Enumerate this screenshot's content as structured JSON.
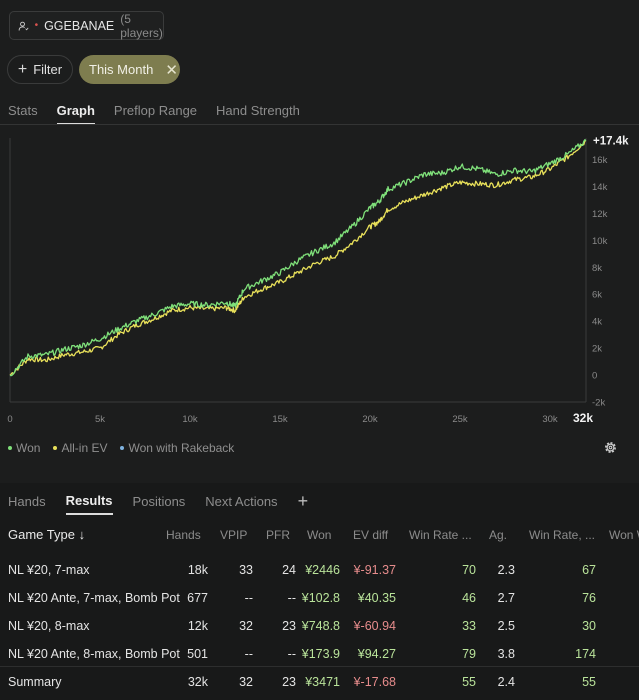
{
  "group": {
    "name": "GGEBANAE",
    "count_label": "(5 players)",
    "dot": "•"
  },
  "filters": {
    "filter_label": "Filter",
    "chip_label": "This Month",
    "chip_color": "#7e7d4f"
  },
  "top_tabs": [
    {
      "label": "Stats",
      "active": false
    },
    {
      "label": "Graph",
      "active": true
    },
    {
      "label": "Preflop Range",
      "active": false
    },
    {
      "label": "Hand Strength",
      "active": false
    }
  ],
  "chart_data": {
    "type": "line",
    "end_label": "+17.4k",
    "x_ticks": [
      "0",
      "5k",
      "10k",
      "15k",
      "20k",
      "25k",
      "30k"
    ],
    "x_max_label": "32k",
    "y_ticks": [
      "-2k",
      "0",
      "2k",
      "4k",
      "6k",
      "8k",
      "10k",
      "12k",
      "14k",
      "16k"
    ],
    "xlim": [
      0,
      32000
    ],
    "ylim": [
      -2000,
      17600
    ],
    "series": [
      {
        "name": "Won",
        "color": "#7fe07a",
        "x": [
          0,
          1000,
          2000,
          3000,
          4000,
          5000,
          6000,
          7000,
          8000,
          9000,
          10000,
          11000,
          12000,
          12500,
          13000,
          14000,
          15000,
          16000,
          17000,
          18000,
          19000,
          20000,
          20500,
          21000,
          22000,
          23000,
          24000,
          25000,
          26000,
          27000,
          28000,
          29000,
          30000,
          31000,
          32000
        ],
        "y": [
          0,
          1400,
          1500,
          1900,
          2200,
          2700,
          3400,
          4000,
          4500,
          5100,
          5300,
          5200,
          5400,
          5100,
          6400,
          7000,
          7600,
          8500,
          9200,
          9800,
          11000,
          12400,
          12900,
          13800,
          14300,
          14900,
          15000,
          15500,
          15300,
          14900,
          15200,
          15100,
          15700,
          16400,
          17400
        ]
      },
      {
        "name": "All-in EV",
        "color": "#e8e05a",
        "x": [
          0,
          1000,
          2000,
          3000,
          4000,
          5000,
          6000,
          7000,
          8000,
          9000,
          10000,
          11000,
          12000,
          12500,
          13000,
          14000,
          15000,
          16000,
          17000,
          18000,
          19000,
          20000,
          20500,
          21000,
          22000,
          23000,
          24000,
          25000,
          26000,
          27000,
          28000,
          29000,
          30000,
          31000,
          32000
        ],
        "y": [
          0,
          1200,
          1100,
          1500,
          1700,
          2000,
          3000,
          3700,
          4200,
          4800,
          5000,
          4900,
          5000,
          4800,
          5800,
          6400,
          6900,
          7600,
          8300,
          8800,
          9800,
          11000,
          11400,
          12300,
          12900,
          13400,
          13900,
          14300,
          14200,
          14100,
          14500,
          14700,
          15300,
          16200,
          17400
        ]
      },
      {
        "name": "Won with Rakeback",
        "color": "#7fb3e0",
        "x": [],
        "y": []
      }
    ]
  },
  "legend_colors": {
    "won": "#7fe07a",
    "ev": "#e8e05a",
    "rakeback": "#7fb3e0"
  },
  "sub_tabs": [
    {
      "label": "Hands",
      "active": false
    },
    {
      "label": "Results",
      "active": true
    },
    {
      "label": "Positions",
      "active": false
    },
    {
      "label": "Next Actions",
      "active": false
    }
  ],
  "table": {
    "headers": {
      "game_type": "Game Type ↓",
      "hands": "Hands",
      "vpip": "VPIP",
      "pfr": "PFR",
      "won": "Won",
      "ev_diff": "EV diff",
      "win_rate": "Win Rate ...",
      "ag": "Ag.",
      "win_rate2": "Win Rate, ...",
      "won_w": "Won W"
    },
    "rows": [
      {
        "name": "NL ¥20, 7-max",
        "hands": "18k",
        "vpip": "33",
        "pfr": "24",
        "won": "¥2446",
        "ev_diff": "¥-91.37",
        "win_rate": "70",
        "ag": "2.3",
        "win_rate2": "67"
      },
      {
        "name": "NL ¥20 Ante, 7-max, Bomb Pot",
        "hands": "677",
        "vpip": "--",
        "pfr": "--",
        "won": "¥102.8",
        "ev_diff": "¥40.35",
        "win_rate": "46",
        "ag": "2.7",
        "win_rate2": "76"
      },
      {
        "name": "NL ¥20, 8-max",
        "hands": "12k",
        "vpip": "32",
        "pfr": "23",
        "won": "¥748.8",
        "ev_diff": "¥-60.94",
        "win_rate": "33",
        "ag": "2.5",
        "win_rate2": "30"
      },
      {
        "name": "NL ¥20 Ante, 8-max, Bomb Pot",
        "hands": "501",
        "vpip": "--",
        "pfr": "--",
        "won": "¥173.9",
        "ev_diff": "¥94.27",
        "win_rate": "79",
        "ag": "3.8",
        "win_rate2": "174"
      }
    ],
    "summary": {
      "name": "Summary",
      "hands": "32k",
      "vpip": "32",
      "pfr": "23",
      "won": "¥3471",
      "ev_diff": "¥-17.68",
      "win_rate": "55",
      "ag": "2.4",
      "win_rate2": "55"
    }
  }
}
